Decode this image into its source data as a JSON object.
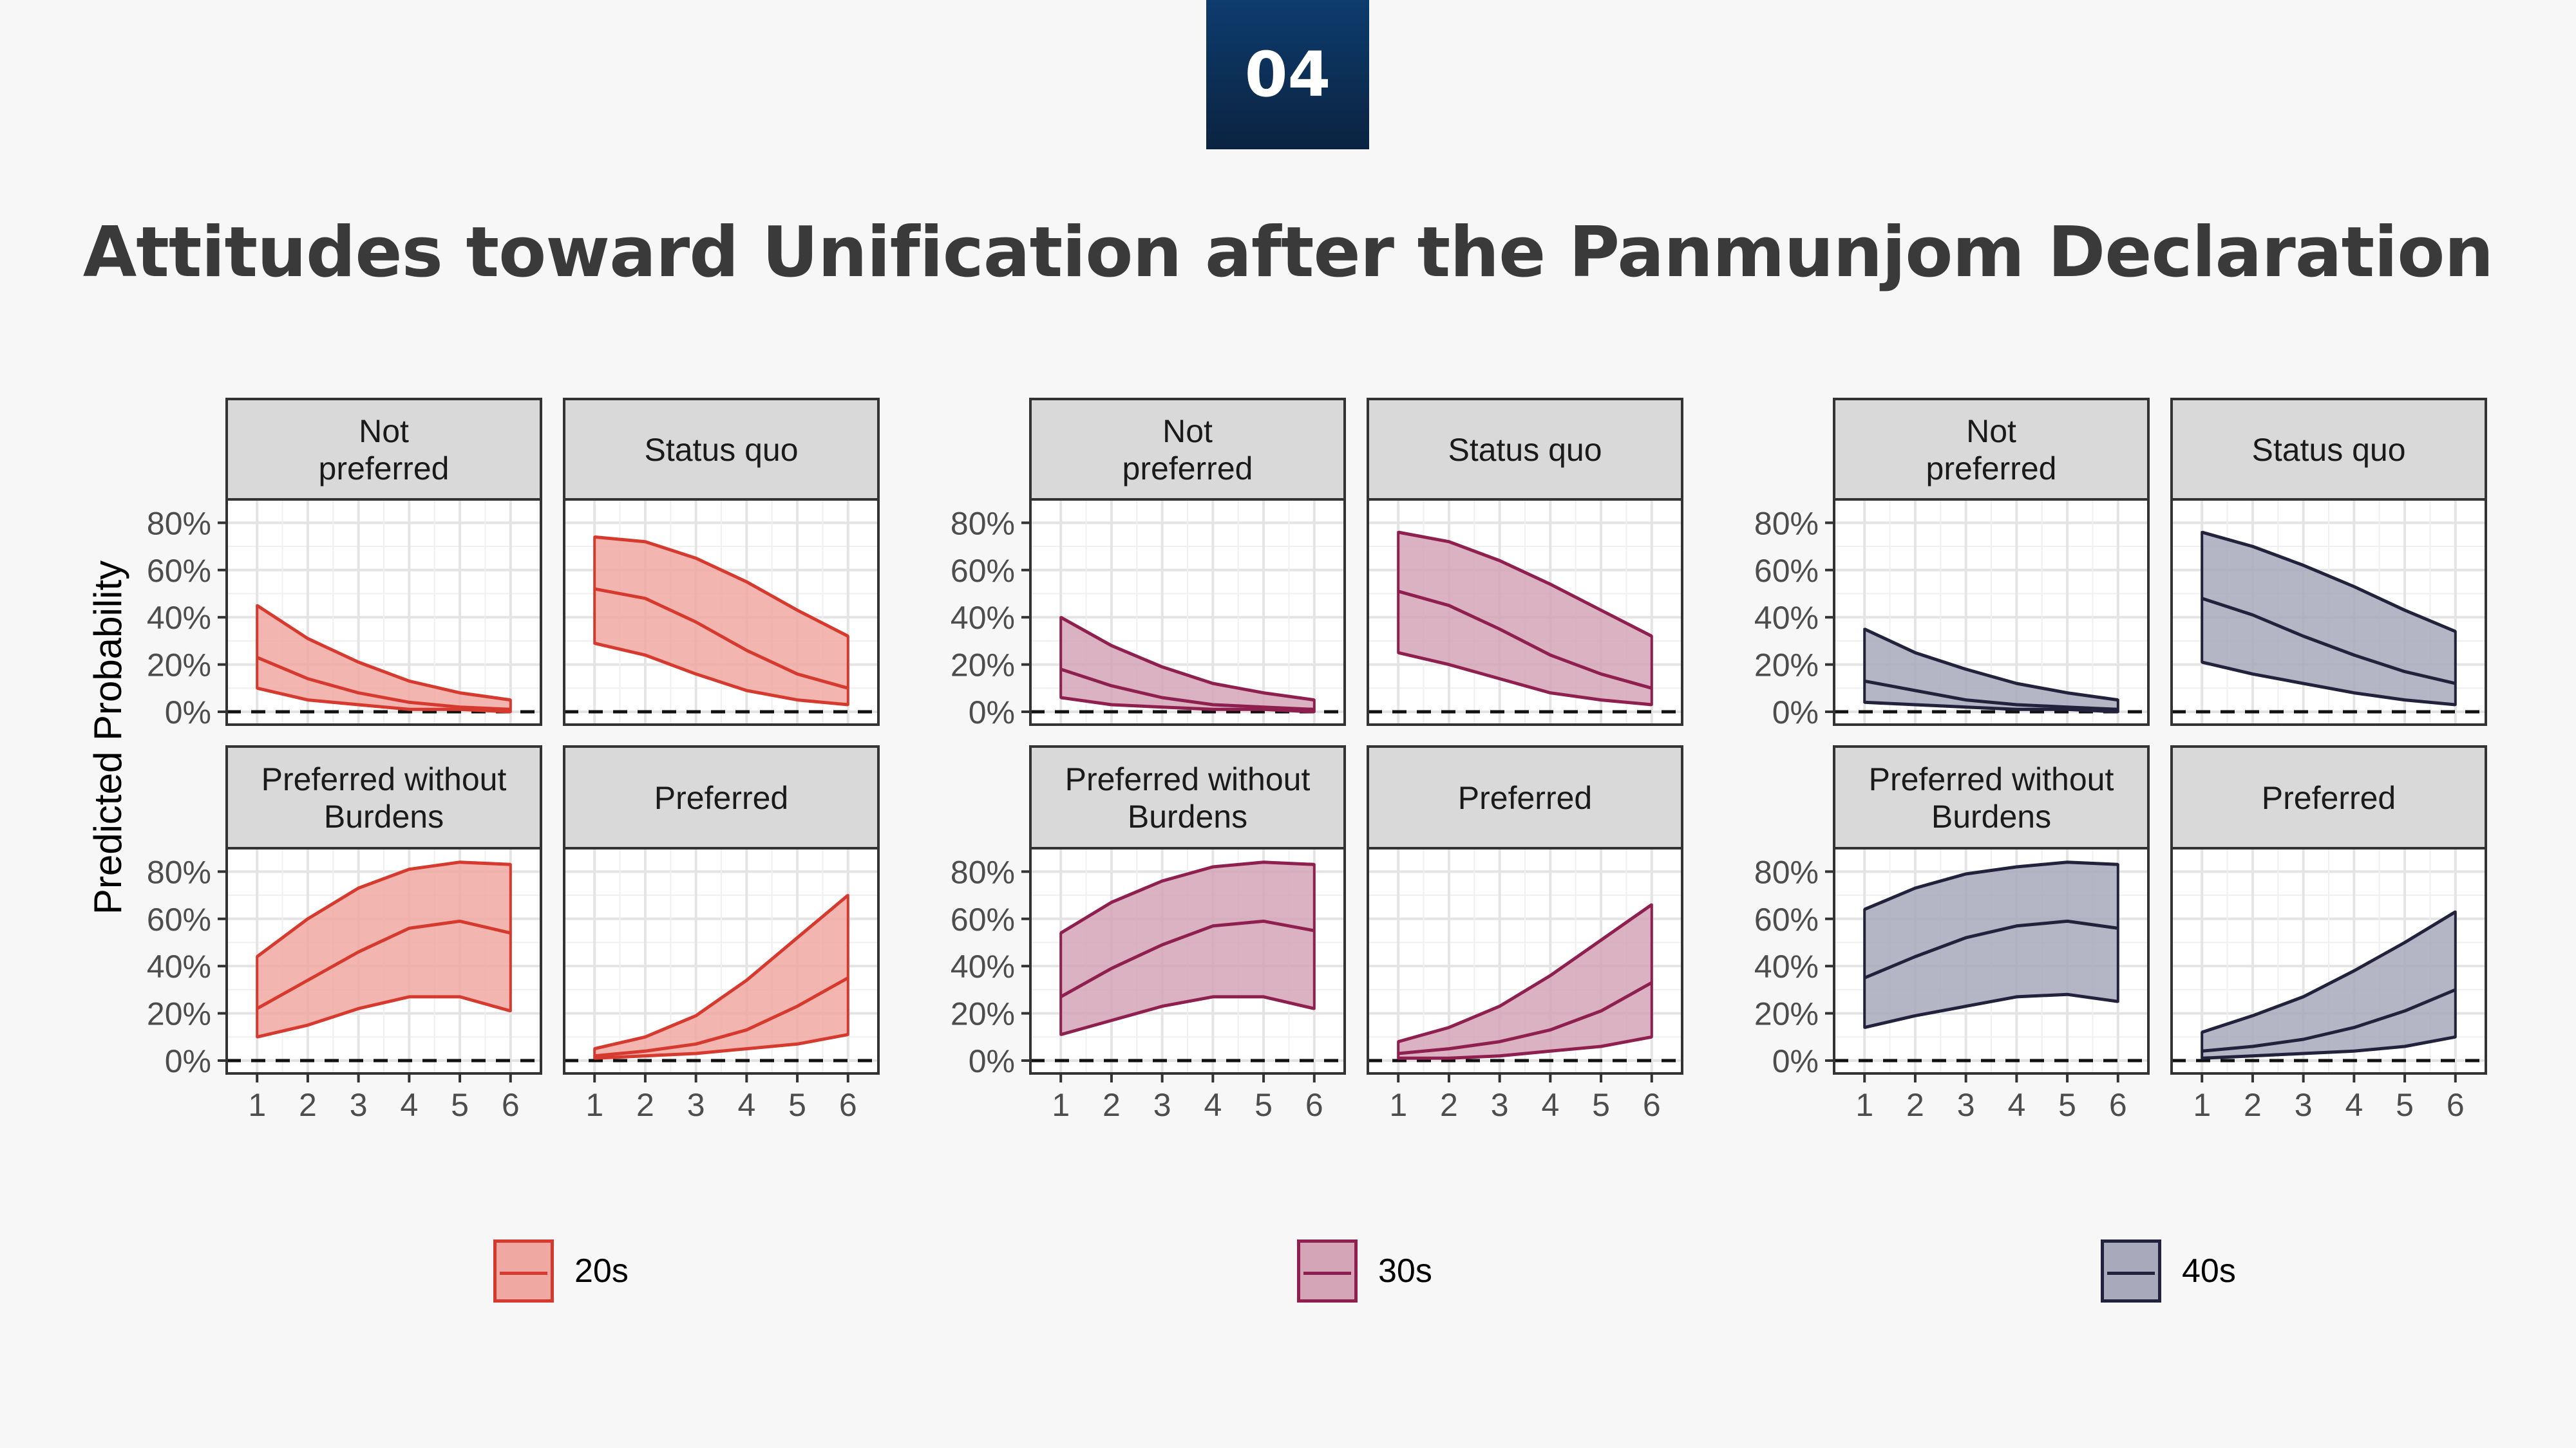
{
  "badge": "04",
  "title": "Attitudes toward Unification after the Panmunjom Declaration",
  "chart_data": {
    "type": "area",
    "ylabel": "Predicted Probability",
    "xlabel": "",
    "x": [
      1,
      2,
      3,
      4,
      5,
      6
    ],
    "ylim": [
      0,
      0.85
    ],
    "yticks": [
      "0%",
      "20%",
      "40%",
      "60%",
      "80%"
    ],
    "grid": true,
    "panels": [
      "Not\npreferred",
      "Status quo",
      "Preferred without\nBurdens",
      "Preferred"
    ],
    "groups": [
      {
        "name": "20s",
        "color": "#d63a2f",
        "fill": "#f0a8a2",
        "facets": {
          "Not\npreferred": {
            "lower": [
              0.1,
              0.05,
              0.03,
              0.01,
              0.01,
              0.0
            ],
            "mid": [
              0.23,
              0.14,
              0.08,
              0.04,
              0.02,
              0.01
            ],
            "upper": [
              0.45,
              0.31,
              0.21,
              0.13,
              0.08,
              0.05
            ]
          },
          "Status quo": {
            "lower": [
              0.29,
              0.24,
              0.16,
              0.09,
              0.05,
              0.03
            ],
            "mid": [
              0.52,
              0.48,
              0.38,
              0.26,
              0.16,
              0.1
            ],
            "upper": [
              0.74,
              0.72,
              0.65,
              0.55,
              0.43,
              0.32
            ]
          },
          "Preferred without\nBurdens": {
            "lower": [
              0.1,
              0.15,
              0.22,
              0.27,
              0.27,
              0.21
            ],
            "mid": [
              0.22,
              0.34,
              0.46,
              0.56,
              0.59,
              0.54
            ],
            "upper": [
              0.44,
              0.6,
              0.73,
              0.81,
              0.84,
              0.83
            ]
          },
          "Preferred": {
            "lower": [
              0.01,
              0.02,
              0.03,
              0.05,
              0.07,
              0.11
            ],
            "mid": [
              0.02,
              0.04,
              0.07,
              0.13,
              0.23,
              0.35
            ],
            "upper": [
              0.05,
              0.1,
              0.19,
              0.34,
              0.52,
              0.7
            ]
          }
        }
      },
      {
        "name": "30s",
        "color": "#8e1f4f",
        "fill": "#d4a4b7",
        "facets": {
          "Not\npreferred": {
            "lower": [
              0.06,
              0.03,
              0.02,
              0.01,
              0.01,
              0.0
            ],
            "mid": [
              0.18,
              0.11,
              0.06,
              0.03,
              0.02,
              0.01
            ],
            "upper": [
              0.4,
              0.28,
              0.19,
              0.12,
              0.08,
              0.05
            ]
          },
          "Status quo": {
            "lower": [
              0.25,
              0.2,
              0.14,
              0.08,
              0.05,
              0.03
            ],
            "mid": [
              0.51,
              0.45,
              0.35,
              0.24,
              0.16,
              0.1
            ],
            "upper": [
              0.76,
              0.72,
              0.64,
              0.54,
              0.43,
              0.32
            ]
          },
          "Preferred without\nBurdens": {
            "lower": [
              0.11,
              0.17,
              0.23,
              0.27,
              0.27,
              0.22
            ],
            "mid": [
              0.27,
              0.39,
              0.49,
              0.57,
              0.59,
              0.55
            ],
            "upper": [
              0.54,
              0.67,
              0.76,
              0.82,
              0.84,
              0.83
            ]
          },
          "Preferred": {
            "lower": [
              0.01,
              0.01,
              0.02,
              0.04,
              0.06,
              0.1
            ],
            "mid": [
              0.03,
              0.05,
              0.08,
              0.13,
              0.21,
              0.33
            ],
            "upper": [
              0.08,
              0.14,
              0.23,
              0.36,
              0.51,
              0.66
            ]
          }
        }
      },
      {
        "name": "40s",
        "color": "#23223d",
        "fill": "#a8a9bb",
        "facets": {
          "Not\npreferred": {
            "lower": [
              0.04,
              0.03,
              0.02,
              0.01,
              0.01,
              0.0
            ],
            "mid": [
              0.13,
              0.09,
              0.05,
              0.03,
              0.02,
              0.01
            ],
            "upper": [
              0.35,
              0.25,
              0.18,
              0.12,
              0.08,
              0.05
            ]
          },
          "Status quo": {
            "lower": [
              0.21,
              0.16,
              0.12,
              0.08,
              0.05,
              0.03
            ],
            "mid": [
              0.48,
              0.41,
              0.32,
              0.24,
              0.17,
              0.12
            ],
            "upper": [
              0.76,
              0.7,
              0.62,
              0.53,
              0.43,
              0.34
            ]
          },
          "Preferred without\nBurdens": {
            "lower": [
              0.14,
              0.19,
              0.23,
              0.27,
              0.28,
              0.25
            ],
            "mid": [
              0.35,
              0.44,
              0.52,
              0.57,
              0.59,
              0.56
            ],
            "upper": [
              0.64,
              0.73,
              0.79,
              0.82,
              0.84,
              0.83
            ]
          },
          "Preferred": {
            "lower": [
              0.01,
              0.02,
              0.03,
              0.04,
              0.06,
              0.1
            ],
            "mid": [
              0.04,
              0.06,
              0.09,
              0.14,
              0.21,
              0.3
            ],
            "upper": [
              0.12,
              0.19,
              0.27,
              0.38,
              0.5,
              0.63
            ]
          }
        }
      }
    ]
  }
}
